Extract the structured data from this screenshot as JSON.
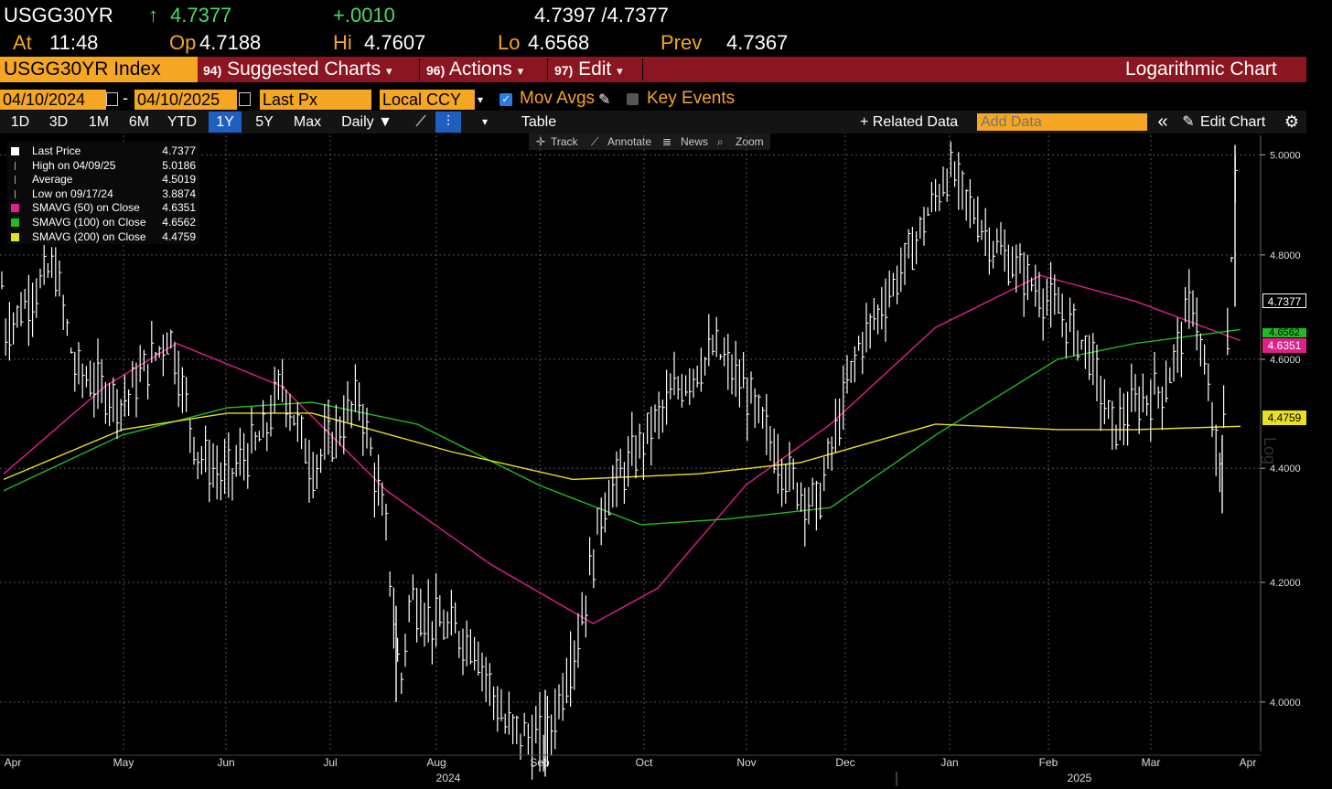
{
  "header": {
    "ticker": "USGG30YR",
    "arrow": "↑",
    "last": "4.7377",
    "change": "+.0010",
    "bid_ask": "4.7397 /4.7377",
    "at_label": "At",
    "at_time": "11:48",
    "op_label": "Op",
    "op": "4.7188",
    "hi_label": "Hi",
    "hi": "4.7607",
    "lo_label": "Lo",
    "lo": "4.6568",
    "prev_label": "Prev",
    "prev": "4.7367"
  },
  "menubar": {
    "index": "USGG30YR Index",
    "suggested_num": "94)",
    "suggested": "Suggested Charts",
    "actions_num": "96)",
    "actions": "Actions",
    "edit_num": "97)",
    "edit": "Edit",
    "chart_mode": "Logarithmic Chart",
    "caret": "▾"
  },
  "params": {
    "start_date": "04/10/2024",
    "dash": "-",
    "end_date": "04/10/2025",
    "field": "Last Px",
    "ccy": "Local CCY",
    "mov_avgs": "Mov Avgs",
    "key_events": "Key Events"
  },
  "toolbar": {
    "periods": [
      "1D",
      "3D",
      "1M",
      "6M",
      "YTD",
      "1Y",
      "5Y",
      "Max"
    ],
    "selected_period": "1Y",
    "frequency": "Daily ▼",
    "table": "Table",
    "related": "+ Related Data",
    "add_data_placeholder": "Add Data",
    "collapse": "«",
    "edit_chart": "Edit Chart"
  },
  "tools": {
    "track": "Track",
    "annotate": "Annotate",
    "news": "News",
    "zoom": "Zoom"
  },
  "legend": [
    {
      "label": "Last Price",
      "value": "4.7377",
      "color": "#ffffff",
      "kind": "box"
    },
    {
      "label": "High on 04/09/25",
      "value": "5.0186",
      "color": "#ffffff",
      "kind": "high"
    },
    {
      "label": "Average",
      "value": "4.5019",
      "color": "#ffffff",
      "kind": "avg"
    },
    {
      "label": "Low on 09/17/24",
      "value": "3.8874",
      "color": "#ffffff",
      "kind": "low"
    },
    {
      "label": "SMAVG (50)  on Close",
      "value": "4.6351",
      "color": "#e0208a",
      "kind": "box"
    },
    {
      "label": "SMAVG (100)  on Close",
      "value": "4.6562",
      "color": "#22bb22",
      "kind": "box"
    },
    {
      "label": "SMAVG (200)  on Close",
      "value": "4.4759",
      "color": "#e8e020",
      "kind": "box"
    }
  ],
  "axis_tags": {
    "last": "4.7377",
    "sma100": "4.6562",
    "sma50": "4.6351",
    "sma200": "4.4759",
    "scale_word": "Log"
  },
  "chart_data": {
    "type": "line",
    "scale": "log",
    "ylim": [
      3.92,
      5.04
    ],
    "y_ticks": [
      "4.0000",
      "4.2000",
      "4.4000",
      "4.6000",
      "4.8000",
      "5.0000"
    ],
    "month_labels": [
      "Apr",
      "May",
      "Jun",
      "Jul",
      "Aug",
      "Sep",
      "Oct",
      "Nov",
      "Dec",
      "Jan",
      "Feb",
      "Mar",
      "Apr"
    ],
    "year_labels": [
      "2024",
      "2025"
    ],
    "grid": true,
    "x_start": "2024-04-10",
    "x_end": "2025-04-10",
    "series": [
      {
        "name": "Last Price",
        "color": "#ffffff",
        "x": [
          "2024-04-10",
          "2024-04-25",
          "2024-05-01",
          "2024-05-15",
          "2024-05-29",
          "2024-06-06",
          "2024-06-14",
          "2024-06-26",
          "2024-07-01",
          "2024-07-10",
          "2024-07-24",
          "2024-08-01",
          "2024-08-05",
          "2024-08-08",
          "2024-08-15",
          "2024-08-27",
          "2024-09-05",
          "2024-09-17",
          "2024-09-27",
          "2024-10-04",
          "2024-10-14",
          "2024-10-25",
          "2024-11-06",
          "2024-11-15",
          "2024-11-27",
          "2024-12-06",
          "2024-12-18",
          "2024-12-31",
          "2025-01-14",
          "2025-01-27",
          "2025-02-11",
          "2025-02-24",
          "2025-03-03",
          "2025-03-11",
          "2025-03-19",
          "2025-03-27",
          "2025-04-04",
          "2025-04-09",
          "2025-04-10"
        ],
        "values": [
          4.65,
          4.78,
          4.58,
          4.52,
          4.65,
          4.43,
          4.38,
          4.46,
          4.56,
          4.4,
          4.53,
          4.28,
          4.02,
          4.18,
          4.13,
          4.1,
          3.96,
          3.93,
          4.12,
          4.34,
          4.43,
          4.54,
          4.62,
          4.54,
          4.39,
          4.33,
          4.62,
          4.77,
          4.97,
          4.82,
          4.72,
          4.62,
          4.47,
          4.52,
          4.55,
          4.72,
          4.38,
          5.01,
          4.74
        ]
      },
      {
        "name": "SMAVG (50) on Close",
        "color": "#e0208a",
        "x": [
          "2024-04-10",
          "2024-05-10",
          "2024-05-31",
          "2024-07-01",
          "2024-08-01",
          "2024-09-01",
          "2024-10-01",
          "2024-10-20",
          "2024-11-15",
          "2024-12-10",
          "2025-01-10",
          "2025-02-10",
          "2025-03-10",
          "2025-04-10"
        ],
        "values": [
          4.39,
          4.55,
          4.63,
          4.55,
          4.36,
          4.23,
          4.13,
          4.19,
          4.37,
          4.48,
          4.66,
          4.76,
          4.71,
          4.6351
        ]
      },
      {
        "name": "SMAVG (100) on Close",
        "color": "#22bb22",
        "x": [
          "2024-04-10",
          "2024-05-15",
          "2024-06-15",
          "2024-07-10",
          "2024-08-10",
          "2024-09-15",
          "2024-10-15",
          "2024-11-10",
          "2024-12-10",
          "2025-01-10",
          "2025-02-15",
          "2025-03-10",
          "2025-04-10"
        ],
        "values": [
          4.36,
          4.46,
          4.51,
          4.52,
          4.48,
          4.37,
          4.3,
          4.31,
          4.33,
          4.46,
          4.6,
          4.63,
          4.6562
        ]
      },
      {
        "name": "SMAVG (200) on Close",
        "color": "#e8e020",
        "x": [
          "2024-04-10",
          "2024-05-15",
          "2024-06-15",
          "2024-07-10",
          "2024-08-20",
          "2024-09-25",
          "2024-11-01",
          "2024-12-01",
          "2025-01-10",
          "2025-02-15",
          "2025-03-10",
          "2025-04-10"
        ],
        "values": [
          4.38,
          4.47,
          4.5,
          4.5,
          4.43,
          4.38,
          4.39,
          4.41,
          4.48,
          4.47,
          4.47,
          4.4759
        ]
      }
    ]
  }
}
